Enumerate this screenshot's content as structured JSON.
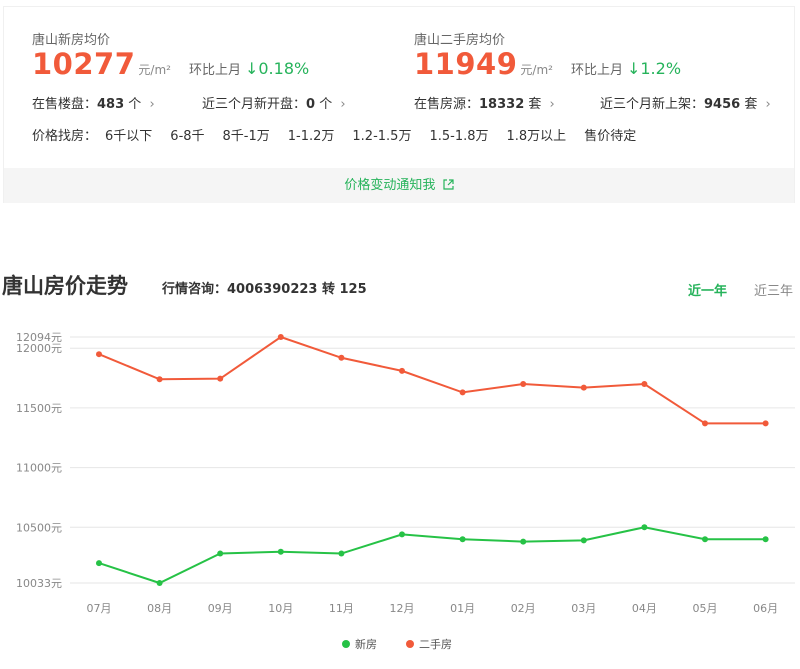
{
  "new_house": {
    "label": "唐山新房均价",
    "price": "10277",
    "unit": "元/m²",
    "mom_label": "环比上月",
    "mom_arrow": "↓",
    "mom_value": "0.18%",
    "onsale_label": "在售楼盘：",
    "onsale_value": "483",
    "onsale_suffix": "个",
    "new_open_label": "近三个月新开盘：",
    "new_open_value": "0",
    "new_open_suffix": "个"
  },
  "second_hand": {
    "label": "唐山二手房均价",
    "price": "11949",
    "unit": "元/m²",
    "mom_label": "环比上月",
    "mom_arrow": "↓",
    "mom_value": "1.2%",
    "onsale_label": "在售房源：",
    "onsale_value": "18332",
    "onsale_suffix": "套",
    "new_list_label": "近三个月新上架：",
    "new_list_value": "9456",
    "new_list_suffix": "套"
  },
  "price_filter": {
    "label": "价格找房：",
    "options": [
      "6千以下",
      "6-8千",
      "8千-1万",
      "1-1.2万",
      "1.2-1.5万",
      "1.5-1.8万",
      "1.8万以上",
      "售价待定"
    ]
  },
  "notify": {
    "label": "价格变动通知我"
  },
  "trend": {
    "title": "唐山房价走势",
    "hotline": "行情咨询：4006390223 转 125",
    "tab_1y": "近一年",
    "tab_3y": "近三年"
  },
  "colors": {
    "accent": "#26b35b",
    "price": "#f15a3a",
    "new_line": "#26c246",
    "second_line": "#f15a3a"
  },
  "chart_data": {
    "type": "line",
    "categories": [
      "07月",
      "08月",
      "09月",
      "10月",
      "11月",
      "12月",
      "01月",
      "02月",
      "03月",
      "04月",
      "05月",
      "06月"
    ],
    "y_ticks": [
      {
        "value": 10033,
        "label": "10033元"
      },
      {
        "value": 10500,
        "label": "10500元"
      },
      {
        "value": 11000,
        "label": "11000元"
      },
      {
        "value": 11500,
        "label": "11500元"
      },
      {
        "value": 12000,
        "label": "12000元"
      },
      {
        "value": 12094,
        "label": "12094元"
      }
    ],
    "ylim": [
      10033,
      12094
    ],
    "grid": true,
    "legend_position": "bottom",
    "series": [
      {
        "name": "新房",
        "color": "#26c246",
        "values": [
          10200,
          10033,
          10280,
          10295,
          10280,
          10440,
          10400,
          10380,
          10390,
          10500,
          10400,
          10400
        ]
      },
      {
        "name": "二手房",
        "color": "#f15a3a",
        "values": [
          11950,
          11740,
          11745,
          12094,
          11920,
          11810,
          11630,
          11700,
          11670,
          11700,
          11370,
          11370
        ]
      }
    ]
  }
}
